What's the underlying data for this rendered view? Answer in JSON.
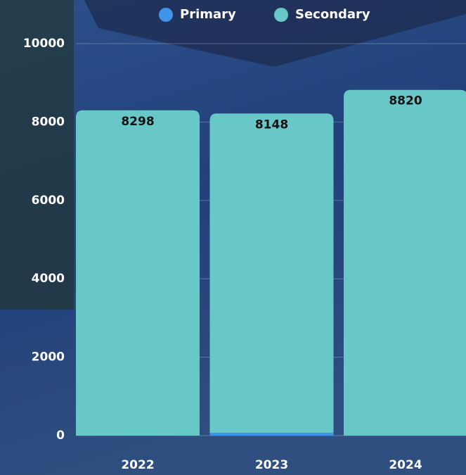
{
  "chart_data": {
    "type": "stacked_bar",
    "categories": [
      "2022",
      "2023",
      "2024"
    ],
    "series": [
      {
        "name": "Primary",
        "color": "#3d94e8",
        "values": [
          0,
          70,
          0
        ]
      },
      {
        "name": "Secondary",
        "color": "#68c8c7",
        "values": [
          8298,
          8148,
          8820
        ]
      }
    ],
    "ylim": [
      0,
      10000
    ],
    "yticks": [
      0,
      2000,
      4000,
      6000,
      8000,
      10000
    ],
    "grid": true,
    "legend": "top"
  }
}
